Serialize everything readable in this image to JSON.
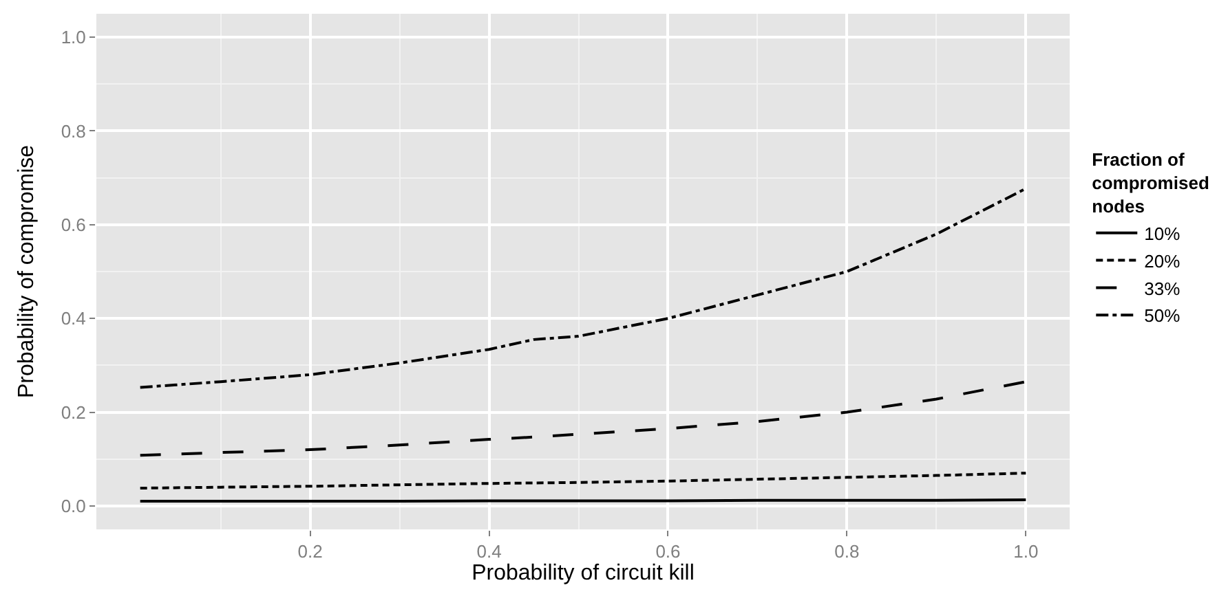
{
  "chart_data": {
    "type": "line",
    "xlabel": "Probability of circuit kill",
    "ylabel": "Probability of compromise",
    "legend_title": "Fraction of compromised nodes",
    "x": [
      0.01,
      0.1,
      0.2,
      0.3,
      0.4,
      0.45,
      0.5,
      0.6,
      0.7,
      0.8,
      0.9,
      1.0
    ],
    "series": [
      {
        "name": "10%",
        "color": "#000000",
        "line_style": "solid",
        "values": [
          0.01,
          0.01,
          0.01,
          0.01,
          0.011,
          0.011,
          0.011,
          0.011,
          0.012,
          0.012,
          0.012,
          0.013
        ]
      },
      {
        "name": "20%",
        "color": "#000000",
        "line_style": "dashed",
        "values": [
          0.038,
          0.04,
          0.042,
          0.045,
          0.048,
          0.049,
          0.05,
          0.053,
          0.057,
          0.061,
          0.065,
          0.07
        ]
      },
      {
        "name": "33%",
        "color": "#000000",
        "line_style": "longdash",
        "values": [
          0.108,
          0.114,
          0.12,
          0.13,
          0.142,
          0.147,
          0.153,
          0.165,
          0.18,
          0.2,
          0.228,
          0.265
        ]
      },
      {
        "name": "50%",
        "color": "#000000",
        "line_style": "dashdot",
        "values": [
          0.253,
          0.265,
          0.28,
          0.305,
          0.334,
          0.355,
          0.362,
          0.4,
          0.45,
          0.5,
          0.58,
          0.677
        ]
      }
    ],
    "xlim": [
      -0.039,
      1.049
    ],
    "ylim": [
      -0.05,
      1.05
    ],
    "xticks": [
      0.2,
      0.4,
      0.6,
      0.8,
      {
        "value": 1.0,
        "label": "1.0"
      }
    ],
    "yticks": [
      {
        "value": 0.0,
        "label": "0.0"
      },
      0.2,
      0.4,
      0.6,
      0.8,
      {
        "value": 1.0,
        "label": "1.0"
      }
    ],
    "grid": true,
    "legend": "right",
    "marker": "none"
  }
}
